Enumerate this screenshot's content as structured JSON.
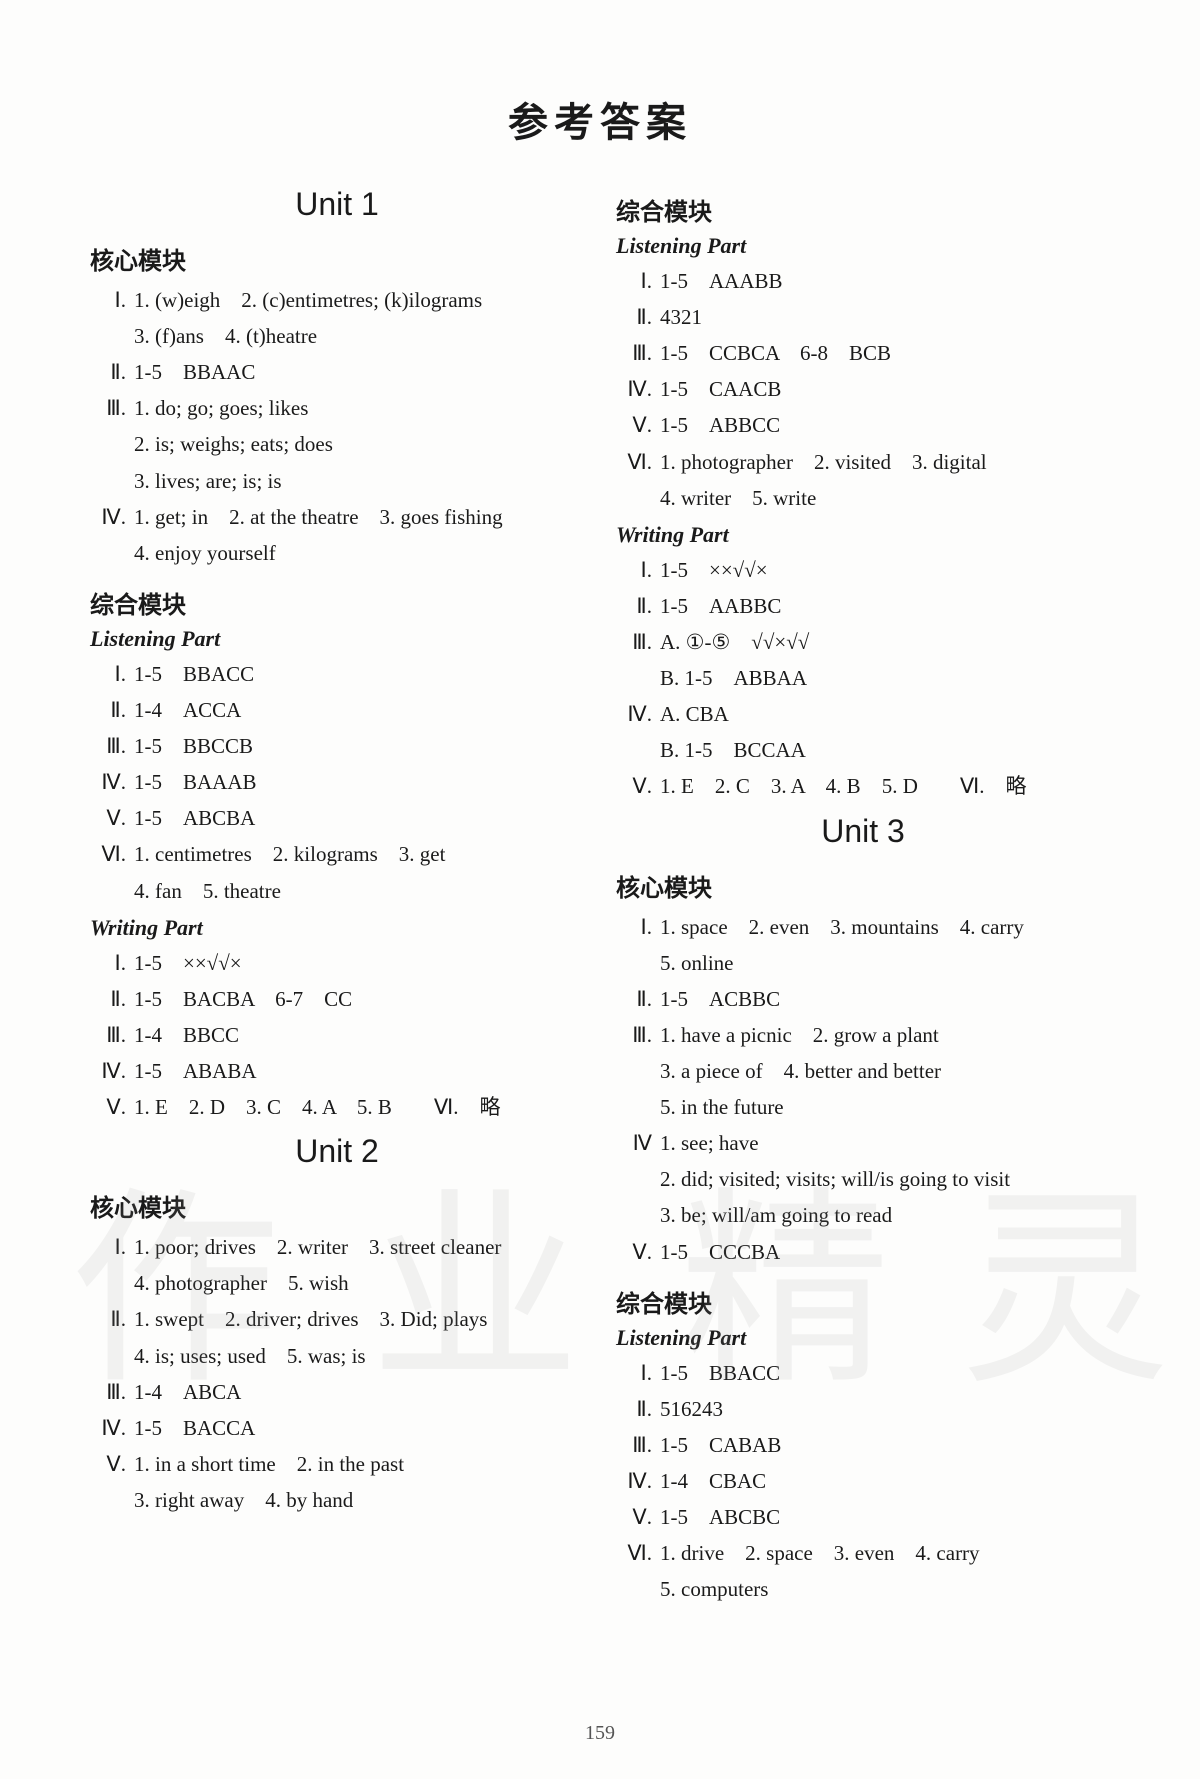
{
  "page_title": "参考答案",
  "page_number": "159",
  "watermark": {
    "c1": "作",
    "c2": "业",
    "c3": "精",
    "c4": "灵"
  },
  "left": {
    "unit1": {
      "title": "Unit 1",
      "core_label": "核心模块",
      "core": [
        {
          "roman": "Ⅰ.",
          "lines": [
            "1. (w)eigh　2. (c)entimetres; (k)ilograms",
            "3. (f)ans　4. (t)heatre"
          ]
        },
        {
          "roman": "Ⅱ.",
          "lines": [
            "1-5　BBAAC"
          ]
        },
        {
          "roman": "Ⅲ.",
          "lines": [
            "1. do; go; goes; likes",
            "2. is; weighs; eats; does",
            "3. lives; are; is; is"
          ]
        },
        {
          "roman": "Ⅳ.",
          "lines": [
            "1. get; in　2. at the theatre　3. goes fishing",
            "4. enjoy yourself"
          ]
        }
      ],
      "comp_label": "综合模块",
      "listening_label": "Listening Part",
      "listening": [
        {
          "roman": "Ⅰ.",
          "lines": [
            "1-5　BBACC"
          ]
        },
        {
          "roman": "Ⅱ.",
          "lines": [
            "1-4　ACCA"
          ]
        },
        {
          "roman": "Ⅲ.",
          "lines": [
            "1-5　BBCCB"
          ]
        },
        {
          "roman": "Ⅳ.",
          "lines": [
            "1-5　BAAAB"
          ]
        },
        {
          "roman": "Ⅴ.",
          "lines": [
            "1-5　ABCBA"
          ]
        },
        {
          "roman": "Ⅵ.",
          "lines": [
            "1. centimetres　2. kilograms　3. get",
            "4. fan　5. theatre"
          ]
        }
      ],
      "writing_label": "Writing Part",
      "writing": [
        {
          "roman": "Ⅰ.",
          "lines": [
            "1-5　××√√×"
          ]
        },
        {
          "roman": "Ⅱ.",
          "lines": [
            "1-5　BACBA　6-7　CC"
          ]
        },
        {
          "roman": "Ⅲ.",
          "lines": [
            "1-4　BBCC"
          ]
        },
        {
          "roman": "Ⅳ.",
          "lines": [
            "1-5　ABABA"
          ]
        },
        {
          "roman": "Ⅴ.",
          "lines": [
            "1. E　2. D　3. C　4. A　5. B　　Ⅵ.　略"
          ]
        }
      ]
    },
    "unit2": {
      "title": "Unit 2",
      "core_label": "核心模块",
      "core": [
        {
          "roman": "Ⅰ.",
          "lines": [
            "1. poor; drives　2. writer　3. street cleaner",
            "4. photographer　5. wish"
          ]
        },
        {
          "roman": "Ⅱ.",
          "lines": [
            "1. swept　2. driver; drives　3. Did; plays",
            "4. is; uses; used　5. was; is"
          ]
        },
        {
          "roman": "Ⅲ.",
          "lines": [
            "1-4　ABCA"
          ]
        },
        {
          "roman": "Ⅳ.",
          "lines": [
            "1-5　BACCA"
          ]
        },
        {
          "roman": "Ⅴ.",
          "lines": [
            "1. in a short time　2. in the past",
            "3. right away　4. by hand"
          ]
        }
      ]
    }
  },
  "right": {
    "unit2comp": {
      "comp_label": "综合模块",
      "listening_label": "Listening Part",
      "listening": [
        {
          "roman": "Ⅰ.",
          "lines": [
            "1-5　AAABB"
          ]
        },
        {
          "roman": "Ⅱ.",
          "lines": [
            "4321"
          ]
        },
        {
          "roman": "Ⅲ.",
          "lines": [
            "1-5　CCBCA　6-8　BCB"
          ]
        },
        {
          "roman": "Ⅳ.",
          "lines": [
            "1-5　CAACB"
          ]
        },
        {
          "roman": "Ⅴ.",
          "lines": [
            "1-5　ABBCC"
          ]
        },
        {
          "roman": "Ⅵ.",
          "lines": [
            "1. photographer　2. visited　3. digital",
            "4. writer　5. write"
          ]
        }
      ],
      "writing_label": "Writing Part",
      "writing": [
        {
          "roman": "Ⅰ.",
          "lines": [
            "1-5　××√√×"
          ]
        },
        {
          "roman": "Ⅱ.",
          "lines": [
            "1-5　AABBC"
          ]
        },
        {
          "roman": "Ⅲ.",
          "lines": [
            "A. ①-⑤　√√×√√",
            "B. 1-5　ABBAA"
          ]
        },
        {
          "roman": "Ⅳ.",
          "lines": [
            "A. CBA",
            "B. 1-5　BCCAA"
          ]
        },
        {
          "roman": "Ⅴ.",
          "lines": [
            "1. E　2. C　3. A　4. B　5. D　　Ⅵ.　略"
          ]
        }
      ]
    },
    "unit3": {
      "title": "Unit 3",
      "core_label": "核心模块",
      "core": [
        {
          "roman": "Ⅰ.",
          "lines": [
            "1. space　2. even　3. mountains　4. carry",
            "5. online"
          ]
        },
        {
          "roman": "Ⅱ.",
          "lines": [
            "1-5　ACBBC"
          ]
        },
        {
          "roman": "Ⅲ.",
          "lines": [
            "1. have a picnic　2. grow a plant",
            "3. a piece of　4. better and better",
            "5. in the future"
          ]
        },
        {
          "roman": "Ⅳ",
          "lines": [
            "1. see; have",
            "2. did; visited; visits; will/is going to visit",
            "3. be; will/am going to read"
          ]
        },
        {
          "roman": "Ⅴ.",
          "lines": [
            "1-5　CCCBA"
          ]
        }
      ],
      "comp_label": "综合模块",
      "listening_label": "Listening Part",
      "listening": [
        {
          "roman": "Ⅰ.",
          "lines": [
            "1-5　BBACC"
          ]
        },
        {
          "roman": "Ⅱ.",
          "lines": [
            "516243"
          ]
        },
        {
          "roman": "Ⅲ.",
          "lines": [
            "1-5　CABAB"
          ]
        },
        {
          "roman": "Ⅳ.",
          "lines": [
            "1-4　CBAC"
          ]
        },
        {
          "roman": "Ⅴ.",
          "lines": [
            "1-5　ABCBC"
          ]
        },
        {
          "roman": "Ⅵ.",
          "lines": [
            "1. drive　2. space　3. even　4. carry",
            "5. computers"
          ]
        }
      ]
    }
  }
}
